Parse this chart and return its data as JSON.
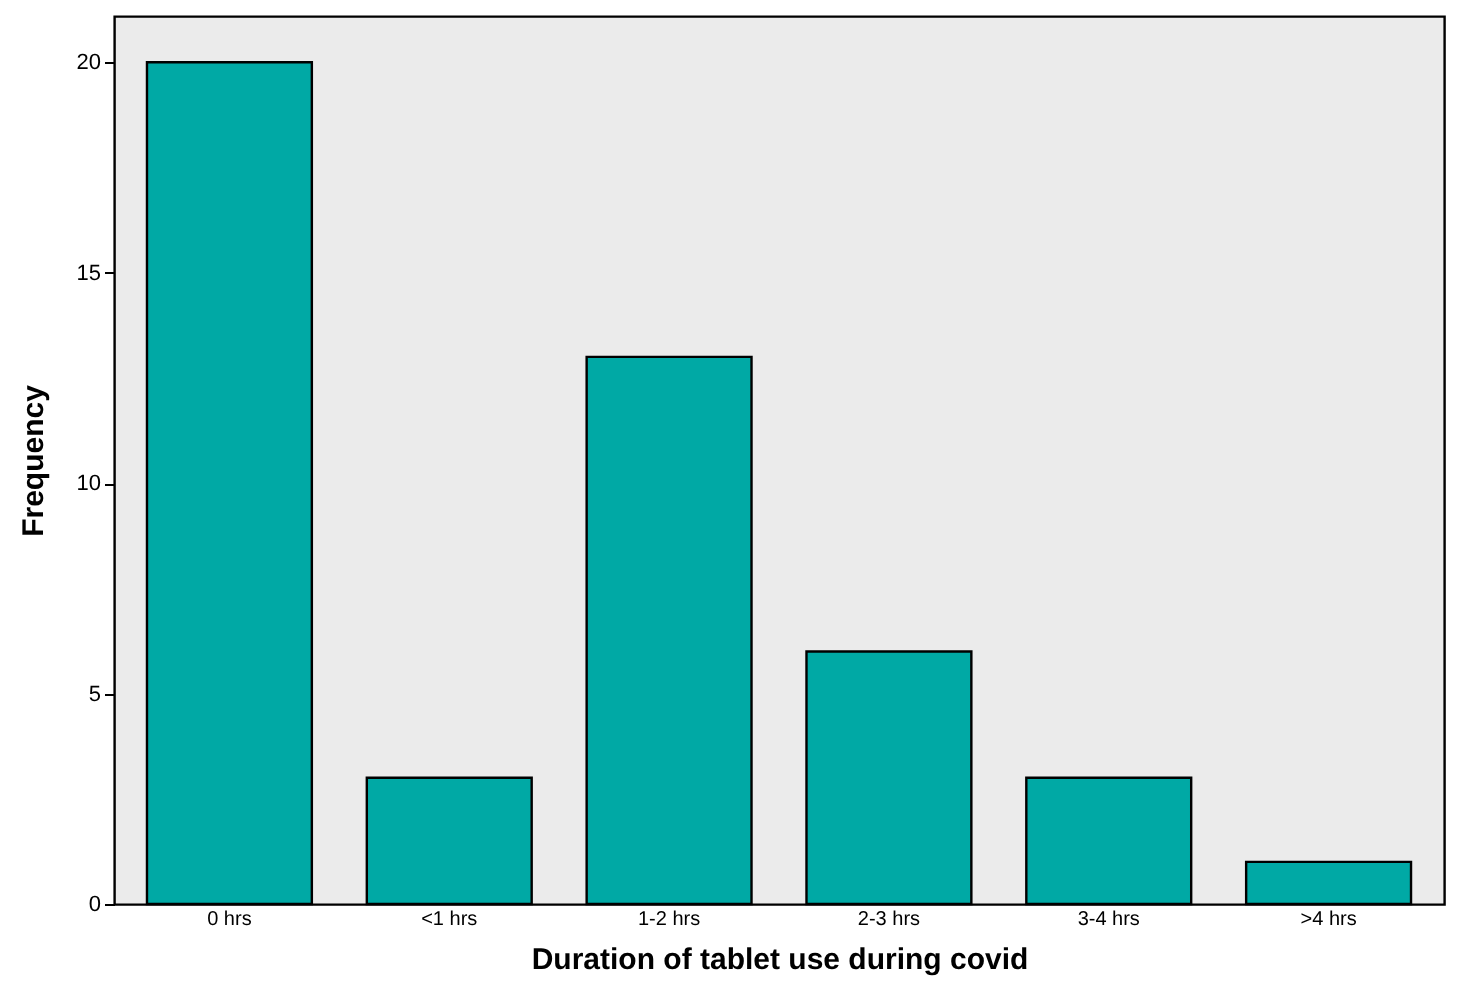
{
  "chart_data": {
    "type": "bar",
    "xlabel": "Duration of tablet use during covid",
    "ylabel": "Frequency",
    "categories": [
      "0 hrs",
      "<1 hrs",
      "1-2 hrs",
      "2-3 hrs",
      "3-4 hrs",
      ">4 hrs"
    ],
    "values": [
      20,
      3,
      13,
      6,
      3,
      1
    ],
    "color": "#00a9a5",
    "ylim": [
      0,
      21.1
    ],
    "yticks": [
      0,
      5,
      10,
      15,
      20
    ],
    "grid": false
  }
}
